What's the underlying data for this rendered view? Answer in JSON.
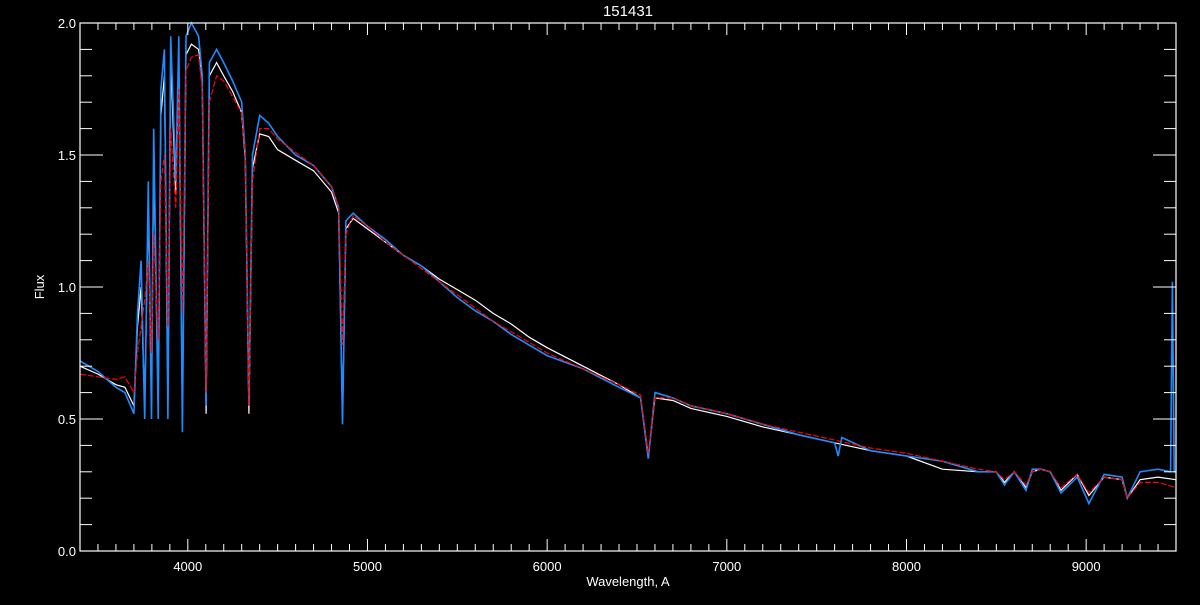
{
  "chart_data": {
    "type": "line",
    "title": "151431",
    "xlabel": "Wavelength, A",
    "ylabel": "Flux",
    "xlim": [
      3400,
      9500
    ],
    "ylim": [
      0.0,
      2.0
    ],
    "xticks": [
      "4000",
      "5000",
      "6000",
      "7000",
      "8000",
      "9000"
    ],
    "yticks": [
      "0.0",
      "0.5",
      "1.0",
      "1.5",
      "2.0"
    ],
    "grid": false,
    "legend": "none",
    "series": [
      {
        "color": "#ffffff",
        "x": [
          3400,
          3500,
          3600,
          3650,
          3700,
          3720,
          3740,
          3760,
          3780,
          3798,
          3810,
          3835,
          3850,
          3870,
          3889,
          3905,
          3933,
          3950,
          3970,
          3990,
          4020,
          4060,
          4080,
          4102,
          4120,
          4160,
          4200,
          4250,
          4300,
          4320,
          4340,
          4360,
          4400,
          4450,
          4500,
          4600,
          4700,
          4800,
          4840,
          4861,
          4880,
          4920,
          5000,
          5100,
          5200,
          5300,
          5400,
          5500,
          5600,
          5700,
          5800,
          5900,
          6000,
          6200,
          6400,
          6520,
          6563,
          6600,
          6700,
          6800,
          7000,
          7200,
          7400,
          7600,
          7800,
          8000,
          8200,
          8400,
          8500,
          8545,
          8600,
          8665,
          8700,
          8750,
          8800,
          8860,
          8950,
          9015,
          9100,
          9200,
          9229,
          9300,
          9400,
          9500
        ],
        "y": [
          0.7,
          0.67,
          0.63,
          0.62,
          0.55,
          0.85,
          1.0,
          0.55,
          1.3,
          0.55,
          1.5,
          0.55,
          1.65,
          1.8,
          0.55,
          1.85,
          1.35,
          1.85,
          0.5,
          1.88,
          1.92,
          1.9,
          1.78,
          0.52,
          1.8,
          1.85,
          1.8,
          1.74,
          1.66,
          1.48,
          0.52,
          1.45,
          1.58,
          1.57,
          1.52,
          1.48,
          1.44,
          1.36,
          1.28,
          0.5,
          1.22,
          1.26,
          1.22,
          1.17,
          1.12,
          1.08,
          1.03,
          0.99,
          0.95,
          0.9,
          0.86,
          0.81,
          0.77,
          0.7,
          0.63,
          0.58,
          0.36,
          0.58,
          0.57,
          0.54,
          0.51,
          0.47,
          0.44,
          0.41,
          0.38,
          0.36,
          0.31,
          0.3,
          0.3,
          0.26,
          0.3,
          0.24,
          0.3,
          0.31,
          0.3,
          0.23,
          0.29,
          0.21,
          0.28,
          0.27,
          0.2,
          0.27,
          0.28,
          0.27
        ]
      },
      {
        "color": "#1e8cff",
        "x": [
          3400,
          3500,
          3600,
          3650,
          3700,
          3720,
          3740,
          3760,
          3780,
          3798,
          3810,
          3835,
          3850,
          3870,
          3889,
          3905,
          3933,
          3950,
          3970,
          3990,
          4020,
          4060,
          4080,
          4102,
          4120,
          4160,
          4200,
          4250,
          4300,
          4320,
          4340,
          4360,
          4400,
          4450,
          4500,
          4600,
          4700,
          4800,
          4840,
          4861,
          4880,
          4920,
          5000,
          5100,
          5200,
          5300,
          5400,
          5500,
          5600,
          5700,
          5800,
          5900,
          6000,
          6200,
          6400,
          6520,
          6563,
          6600,
          6700,
          6800,
          7000,
          7200,
          7400,
          7600,
          7620,
          7640,
          7800,
          8000,
          8200,
          8400,
          8500,
          8545,
          8600,
          8665,
          8700,
          8750,
          8800,
          8860,
          8950,
          9015,
          9100,
          9200,
          9229,
          9300,
          9400,
          9470,
          9480,
          9490,
          9500
        ],
        "y": [
          0.72,
          0.68,
          0.62,
          0.6,
          0.52,
          0.9,
          1.1,
          0.5,
          1.4,
          0.5,
          1.6,
          0.5,
          1.75,
          1.9,
          0.5,
          1.95,
          1.4,
          1.95,
          0.45,
          1.95,
          2.0,
          1.95,
          1.8,
          0.55,
          1.85,
          1.9,
          1.85,
          1.78,
          1.7,
          1.5,
          0.55,
          1.5,
          1.65,
          1.62,
          1.57,
          1.5,
          1.46,
          1.38,
          1.3,
          0.48,
          1.25,
          1.28,
          1.23,
          1.18,
          1.12,
          1.08,
          1.02,
          0.96,
          0.91,
          0.87,
          0.82,
          0.78,
          0.74,
          0.69,
          0.62,
          0.58,
          0.35,
          0.6,
          0.58,
          0.55,
          0.52,
          0.48,
          0.44,
          0.41,
          0.36,
          0.43,
          0.38,
          0.36,
          0.34,
          0.3,
          0.3,
          0.25,
          0.3,
          0.23,
          0.31,
          0.31,
          0.3,
          0.22,
          0.28,
          0.18,
          0.29,
          0.28,
          0.2,
          0.3,
          0.31,
          0.3,
          1.02,
          0.3,
          0.3
        ]
      },
      {
        "color": "#ff0000",
        "x": [
          3400,
          3500,
          3600,
          3650,
          3700,
          3720,
          3740,
          3760,
          3780,
          3798,
          3810,
          3835,
          3850,
          3870,
          3889,
          3905,
          3933,
          3950,
          3970,
          3990,
          4020,
          4060,
          4080,
          4102,
          4120,
          4160,
          4200,
          4250,
          4300,
          4320,
          4340,
          4360,
          4400,
          4450,
          4500,
          4600,
          4700,
          4800,
          4840,
          4861,
          4880,
          4920,
          5000,
          5100,
          5200,
          5300,
          5400,
          5500,
          5600,
          5700,
          5800,
          5900,
          6000,
          6200,
          6400,
          6520,
          6563,
          6600,
          6700,
          6800,
          7000,
          7200,
          7400,
          7600,
          7800,
          8000,
          8200,
          8400,
          8500,
          8545,
          8600,
          8665,
          8700,
          8750,
          8800,
          8860,
          8950,
          9015,
          9100,
          9200,
          9229,
          9300,
          9400,
          9500
        ],
        "y": [
          0.67,
          0.66,
          0.65,
          0.66,
          0.6,
          0.75,
          0.85,
          0.95,
          1.1,
          0.75,
          1.2,
          0.8,
          1.4,
          1.5,
          0.85,
          1.6,
          1.3,
          1.75,
          0.9,
          1.82,
          1.87,
          1.88,
          1.75,
          0.6,
          1.7,
          1.8,
          1.78,
          1.72,
          1.66,
          1.5,
          0.55,
          1.4,
          1.6,
          1.6,
          1.56,
          1.51,
          1.46,
          1.38,
          1.3,
          0.78,
          1.2,
          1.27,
          1.23,
          1.17,
          1.12,
          1.07,
          1.02,
          0.97,
          0.92,
          0.87,
          0.83,
          0.79,
          0.75,
          0.69,
          0.63,
          0.59,
          0.37,
          0.58,
          0.58,
          0.55,
          0.52,
          0.48,
          0.45,
          0.42,
          0.39,
          0.37,
          0.34,
          0.31,
          0.3,
          0.27,
          0.3,
          0.25,
          0.3,
          0.31,
          0.3,
          0.24,
          0.29,
          0.22,
          0.28,
          0.27,
          0.2,
          0.26,
          0.26,
          0.24
        ]
      }
    ]
  }
}
